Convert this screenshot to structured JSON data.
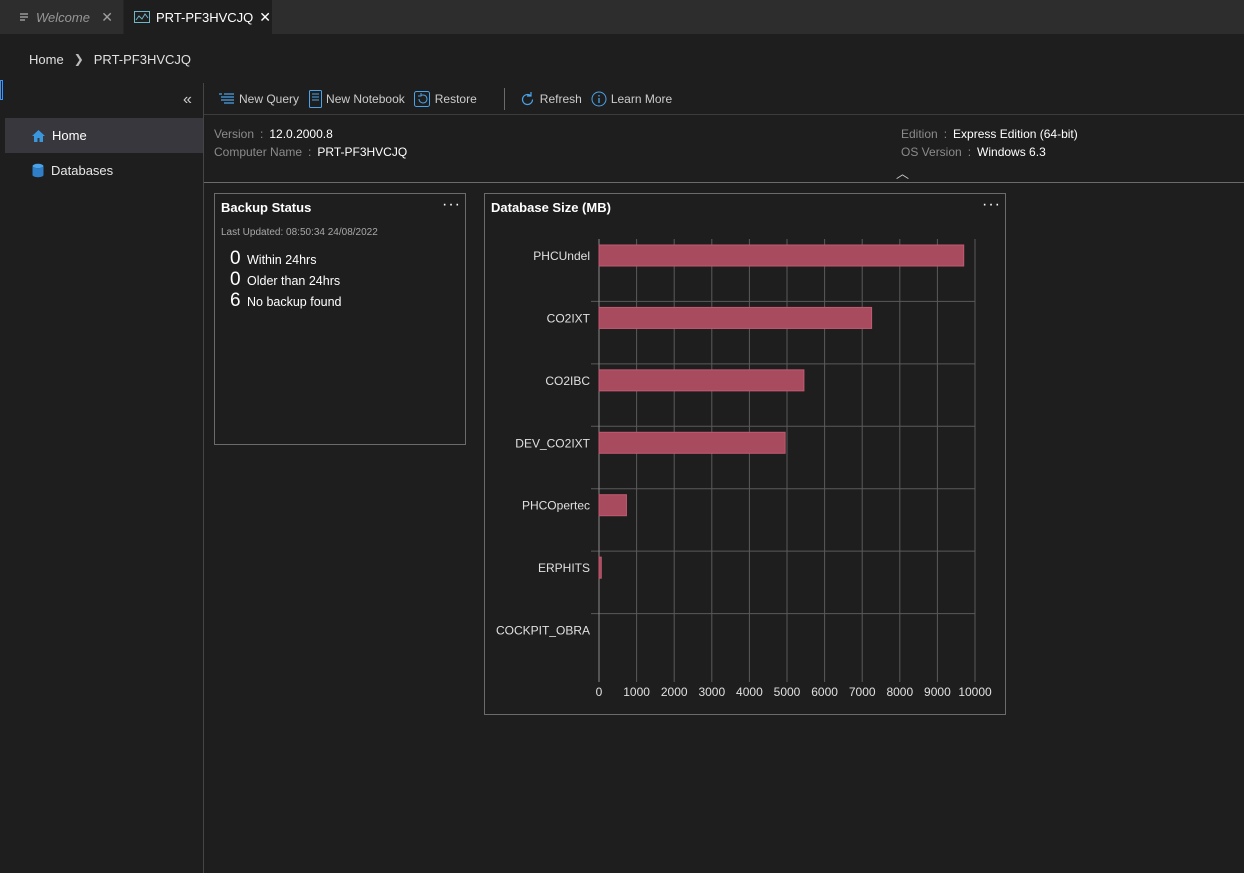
{
  "tabs": [
    {
      "label": "Welcome",
      "icon": "lines-icon"
    },
    {
      "label": "PRT-PF3HVCJQ",
      "icon": "dashboard-icon",
      "active": true
    }
  ],
  "breadcrumb": {
    "home": "Home",
    "current": "PRT-PF3HVCJQ"
  },
  "sidebar": {
    "items": [
      {
        "label": "Home",
        "icon": "home-icon",
        "selected": true
      },
      {
        "label": "Databases",
        "icon": "database-icon"
      }
    ]
  },
  "toolbar": {
    "new_query": "New Query",
    "new_notebook": "New Notebook",
    "restore": "Restore",
    "refresh": "Refresh",
    "learn_more": "Learn More"
  },
  "properties": {
    "version_label": "Version",
    "version_value": "12.0.2000.8",
    "computer_label": "Computer Name",
    "computer_value": "PRT-PF3HVCJQ",
    "edition_label": "Edition",
    "edition_value": "Express Edition (64-bit)",
    "os_label": "OS Version",
    "os_value": "Windows 6.3",
    "separator": ":"
  },
  "backup_widget": {
    "title": "Backup Status",
    "last_updated": "Last Updated: 08:50:34 24/08/2022",
    "more": "···",
    "stats": [
      {
        "count": "0",
        "label": "Within 24hrs"
      },
      {
        "count": "0",
        "label": "Older than 24hrs"
      },
      {
        "count": "6",
        "label": "No backup found"
      }
    ]
  },
  "dbsize_widget": {
    "title": "Database Size (MB)",
    "more": "···"
  },
  "colors": {
    "bar": "#a84b5f",
    "bar_border": "#c25a70",
    "accent": "#3794ff",
    "background": "#1e1e1e"
  },
  "chart_data": {
    "type": "bar",
    "orientation": "horizontal",
    "title": "Database Size (MB)",
    "categories": [
      "PHCUndel",
      "CO2IXT",
      "CO2IBC",
      "DEV_CO2IXT",
      "PHCOpertec",
      "ERPHITS",
      "COCKPIT_OBRA"
    ],
    "values": [
      9700,
      7250,
      5450,
      4950,
      730,
      60,
      0
    ],
    "xlim": [
      0,
      10000
    ],
    "xticks": [
      0,
      1000,
      2000,
      3000,
      4000,
      5000,
      6000,
      7000,
      8000,
      9000,
      10000
    ],
    "grid": true,
    "legend": "none"
  }
}
